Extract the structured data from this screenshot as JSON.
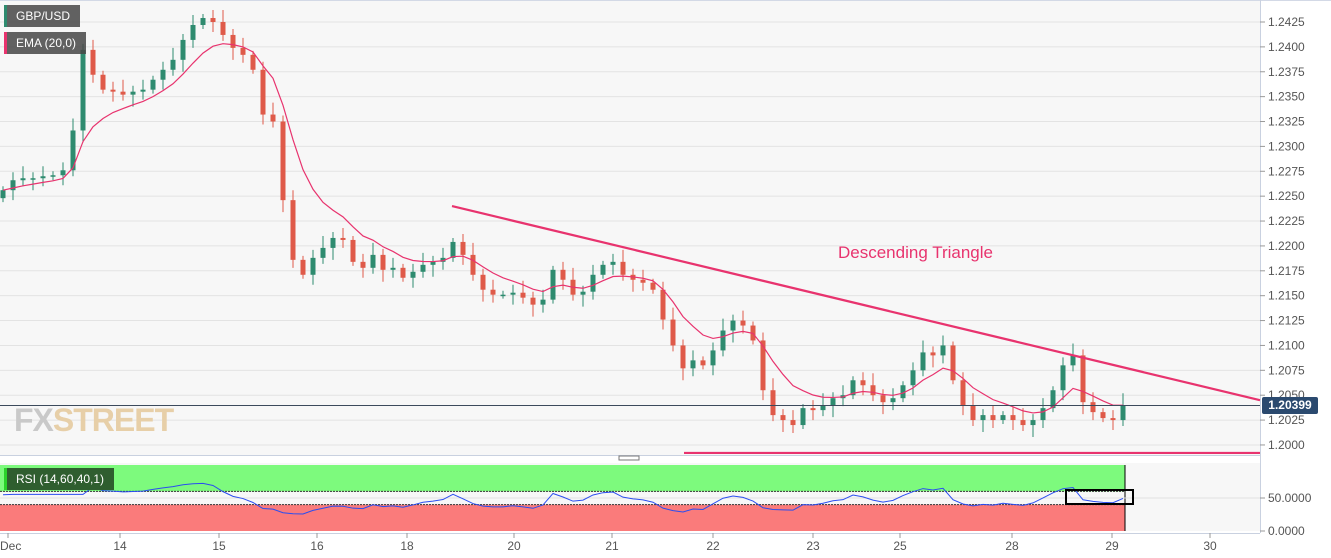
{
  "chart_data": {
    "type": "candlestick",
    "title": "GBP/USD",
    "indicator_ema": "EMA (20,0)",
    "indicator_rsi": "RSI (14,60,40,1)",
    "annotation": "Descending Triangle",
    "current_price": "1.20399",
    "y_ticks": [
      "1.2425",
      "1.2400",
      "1.2375",
      "1.2350",
      "1.2325",
      "1.2300",
      "1.2275",
      "1.2250",
      "1.2225",
      "1.2200",
      "1.2175",
      "1.2150",
      "1.2125",
      "1.2100",
      "1.2075",
      "1.2050",
      "1.2025",
      "1.2000"
    ],
    "ylim": [
      1.1985,
      1.2447
    ],
    "rsi_ticks": [
      "50.0000",
      "0.0000"
    ],
    "rsi_levels": [
      60,
      40
    ],
    "x_ticks": [
      "Dec",
      "14",
      "15",
      "16",
      "18",
      "20",
      "21",
      "22",
      "23",
      "25",
      "28",
      "29",
      "30"
    ],
    "trendline": {
      "from": 1.224,
      "to": 1.2045
    },
    "support": 1.1992,
    "closes": [
      1.2256,
      1.2266,
      1.2268,
      1.2268,
      1.227,
      1.2271,
      1.2276,
      1.2316,
      1.2397,
      1.2372,
      1.2357,
      1.2355,
      1.2352,
      1.2355,
      1.2357,
      1.2367,
      1.2377,
      1.2387,
      1.2407,
      1.2422,
      1.2429,
      1.2425,
      1.2412,
      1.2399,
      1.2392,
      1.2377,
      1.2332,
      1.2325,
      1.2246,
      1.2186,
      1.2171,
      1.2188,
      1.2198,
      1.2208,
      1.2206,
      1.2184,
      1.2178,
      1.2191,
      1.2176,
      1.2178,
      1.2168,
      1.2174,
      1.2181,
      1.2184,
      1.2188,
      1.2204,
      1.2191,
      1.2171,
      1.2156,
      1.2151,
      1.2151,
      1.2153,
      1.2148,
      1.2141,
      1.2146,
      1.2176,
      1.2166,
      1.2151,
      1.2154,
      1.2171,
      1.2181,
      1.2184,
      1.2171,
      1.2166,
      1.2163,
      1.2156,
      1.2126,
      1.21,
      1.2077,
      1.2085,
      1.208,
      1.2095,
      1.2115,
      1.2125,
      1.212,
      1.2105,
      1.2055,
      1.203,
      1.2025,
      1.202,
      1.2037,
      1.2035,
      1.204,
      1.2047,
      1.205,
      1.2065,
      1.206,
      1.205,
      1.2043,
      1.2047,
      1.206,
      1.2075,
      1.2093,
      1.209,
      1.21,
      1.2065,
      1.204,
      1.2025,
      1.203,
      1.2025,
      1.203,
      1.2025,
      1.202,
      1.2025,
      1.2037,
      1.2055,
      1.208,
      1.209,
      1.2043,
      1.2033,
      1.2027,
      1.2025,
      1.204
    ],
    "colors": {
      "up": "#2e8b6f",
      "down": "#df5a49",
      "ema": "#e8336e",
      "trend": "#e8336e",
      "rsi": "#2a4df0",
      "rsi_over": "#7dfa7d",
      "rsi_under": "#fa7b7b",
      "price_tag": "#2b4a6f"
    }
  },
  "watermark": {
    "part1": "FX",
    "part2": "STREET"
  }
}
